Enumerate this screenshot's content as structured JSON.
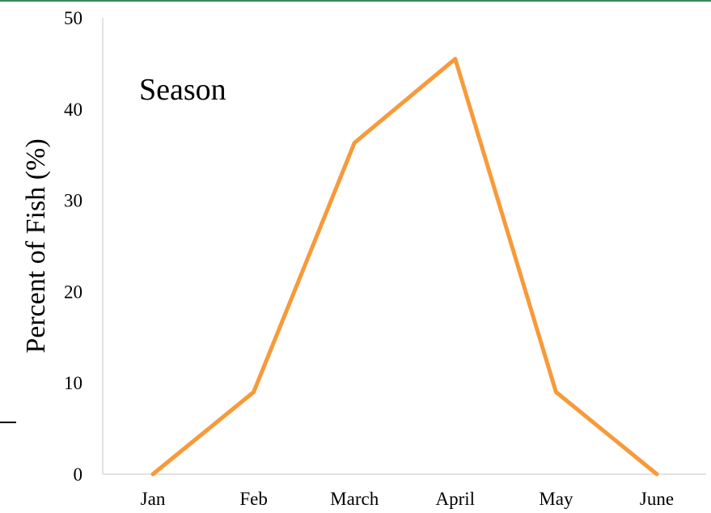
{
  "colors": {
    "series": "#F79A3A",
    "axis": "#d9d9d9",
    "top_border": "#3a8a5a"
  },
  "chart_data": {
    "type": "line",
    "categories": [
      "Jan",
      "Feb",
      "March",
      "April",
      "May",
      "June"
    ],
    "series": [
      {
        "values": [
          0,
          9,
          36.3,
          45.5,
          9,
          0
        ]
      }
    ],
    "title": "",
    "xlabel": "",
    "ylabel": "Percent of Fish (%)",
    "ylim": [
      0,
      50
    ],
    "yticks": [
      "0",
      "10",
      "20",
      "30",
      "40",
      "50"
    ],
    "annotations": [
      {
        "text": "Season"
      }
    ],
    "grid": false,
    "legend": "none"
  }
}
